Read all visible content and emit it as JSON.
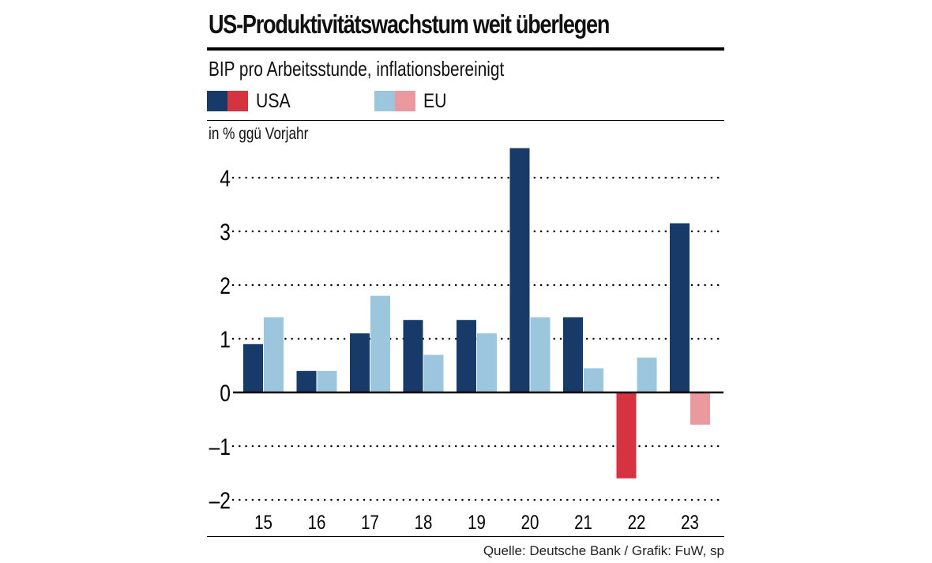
{
  "chart_data": {
    "type": "bar",
    "title": "US-Produktivitätswachstum weit überlegen",
    "subtitle": "BIP pro Arbeitsstunde, inflationsbereinigt",
    "ylabel": "in % ggü Vorjahr",
    "categories": [
      "15",
      "16",
      "17",
      "18",
      "19",
      "20",
      "21",
      "22",
      "23"
    ],
    "series": [
      {
        "name": "USA",
        "values": [
          0.9,
          0.4,
          1.1,
          1.35,
          1.35,
          4.55,
          1.4,
          -1.6,
          3.15
        ],
        "color": "#173a69",
        "negative_color": "#d63341"
      },
      {
        "name": "EU",
        "values": [
          1.4,
          0.4,
          1.8,
          0.7,
          1.1,
          1.4,
          0.45,
          0.65,
          -0.6
        ],
        "color": "#9bc6de",
        "negative_color": "#ea999f"
      }
    ],
    "yticks": [
      "4",
      "3",
      "2",
      "1",
      "0",
      "–1",
      "–2"
    ],
    "ytick_values": [
      4,
      3,
      2,
      1,
      0,
      -1,
      -2
    ],
    "ylim": [
      -2.2,
      4.7
    ],
    "grid": "dotted horizontal",
    "legend_placement": "top",
    "source": "Quelle: Deutsche Bank / Grafik: FuW, sp"
  }
}
